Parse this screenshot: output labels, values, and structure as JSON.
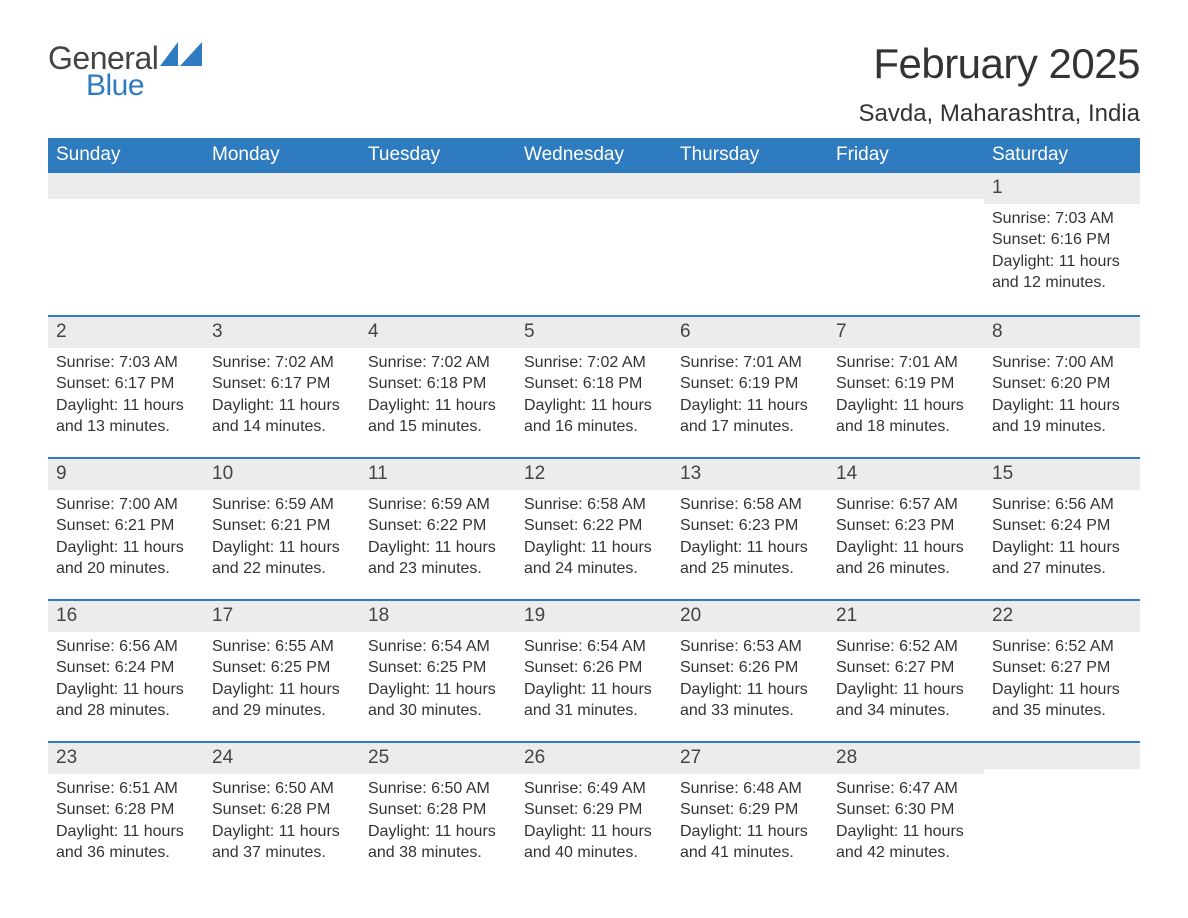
{
  "logo": {
    "text1": "General",
    "text2": "Blue",
    "shape_color": "#2f7bbf",
    "text1_color": "#444444",
    "text2_color": "#2f7bbf"
  },
  "title": "February 2025",
  "location": "Savda, Maharashtra, India",
  "colors": {
    "header_bg": "#2f7bbf",
    "header_text": "#ffffff",
    "daynum_bg": "#ececec",
    "row_border": "#2f7bbf",
    "body_text": "#333333",
    "background": "#ffffff"
  },
  "layout": {
    "columns": 7,
    "rows": 5,
    "title_fontsize": 42,
    "location_fontsize": 24,
    "weekday_fontsize": 19,
    "body_fontsize": 16
  },
  "weekdays": [
    "Sunday",
    "Monday",
    "Tuesday",
    "Wednesday",
    "Thursday",
    "Friday",
    "Saturday"
  ],
  "weeks": [
    [
      null,
      null,
      null,
      null,
      null,
      null,
      {
        "n": "1",
        "sr": "Sunrise: 7:03 AM",
        "ss": "Sunset: 6:16 PM",
        "d1": "Daylight: 11 hours",
        "d2": "and 12 minutes."
      }
    ],
    [
      {
        "n": "2",
        "sr": "Sunrise: 7:03 AM",
        "ss": "Sunset: 6:17 PM",
        "d1": "Daylight: 11 hours",
        "d2": "and 13 minutes."
      },
      {
        "n": "3",
        "sr": "Sunrise: 7:02 AM",
        "ss": "Sunset: 6:17 PM",
        "d1": "Daylight: 11 hours",
        "d2": "and 14 minutes."
      },
      {
        "n": "4",
        "sr": "Sunrise: 7:02 AM",
        "ss": "Sunset: 6:18 PM",
        "d1": "Daylight: 11 hours",
        "d2": "and 15 minutes."
      },
      {
        "n": "5",
        "sr": "Sunrise: 7:02 AM",
        "ss": "Sunset: 6:18 PM",
        "d1": "Daylight: 11 hours",
        "d2": "and 16 minutes."
      },
      {
        "n": "6",
        "sr": "Sunrise: 7:01 AM",
        "ss": "Sunset: 6:19 PM",
        "d1": "Daylight: 11 hours",
        "d2": "and 17 minutes."
      },
      {
        "n": "7",
        "sr": "Sunrise: 7:01 AM",
        "ss": "Sunset: 6:19 PM",
        "d1": "Daylight: 11 hours",
        "d2": "and 18 minutes."
      },
      {
        "n": "8",
        "sr": "Sunrise: 7:00 AM",
        "ss": "Sunset: 6:20 PM",
        "d1": "Daylight: 11 hours",
        "d2": "and 19 minutes."
      }
    ],
    [
      {
        "n": "9",
        "sr": "Sunrise: 7:00 AM",
        "ss": "Sunset: 6:21 PM",
        "d1": "Daylight: 11 hours",
        "d2": "and 20 minutes."
      },
      {
        "n": "10",
        "sr": "Sunrise: 6:59 AM",
        "ss": "Sunset: 6:21 PM",
        "d1": "Daylight: 11 hours",
        "d2": "and 22 minutes."
      },
      {
        "n": "11",
        "sr": "Sunrise: 6:59 AM",
        "ss": "Sunset: 6:22 PM",
        "d1": "Daylight: 11 hours",
        "d2": "and 23 minutes."
      },
      {
        "n": "12",
        "sr": "Sunrise: 6:58 AM",
        "ss": "Sunset: 6:22 PM",
        "d1": "Daylight: 11 hours",
        "d2": "and 24 minutes."
      },
      {
        "n": "13",
        "sr": "Sunrise: 6:58 AM",
        "ss": "Sunset: 6:23 PM",
        "d1": "Daylight: 11 hours",
        "d2": "and 25 minutes."
      },
      {
        "n": "14",
        "sr": "Sunrise: 6:57 AM",
        "ss": "Sunset: 6:23 PM",
        "d1": "Daylight: 11 hours",
        "d2": "and 26 minutes."
      },
      {
        "n": "15",
        "sr": "Sunrise: 6:56 AM",
        "ss": "Sunset: 6:24 PM",
        "d1": "Daylight: 11 hours",
        "d2": "and 27 minutes."
      }
    ],
    [
      {
        "n": "16",
        "sr": "Sunrise: 6:56 AM",
        "ss": "Sunset: 6:24 PM",
        "d1": "Daylight: 11 hours",
        "d2": "and 28 minutes."
      },
      {
        "n": "17",
        "sr": "Sunrise: 6:55 AM",
        "ss": "Sunset: 6:25 PM",
        "d1": "Daylight: 11 hours",
        "d2": "and 29 minutes."
      },
      {
        "n": "18",
        "sr": "Sunrise: 6:54 AM",
        "ss": "Sunset: 6:25 PM",
        "d1": "Daylight: 11 hours",
        "d2": "and 30 minutes."
      },
      {
        "n": "19",
        "sr": "Sunrise: 6:54 AM",
        "ss": "Sunset: 6:26 PM",
        "d1": "Daylight: 11 hours",
        "d2": "and 31 minutes."
      },
      {
        "n": "20",
        "sr": "Sunrise: 6:53 AM",
        "ss": "Sunset: 6:26 PM",
        "d1": "Daylight: 11 hours",
        "d2": "and 33 minutes."
      },
      {
        "n": "21",
        "sr": "Sunrise: 6:52 AM",
        "ss": "Sunset: 6:27 PM",
        "d1": "Daylight: 11 hours",
        "d2": "and 34 minutes."
      },
      {
        "n": "22",
        "sr": "Sunrise: 6:52 AM",
        "ss": "Sunset: 6:27 PM",
        "d1": "Daylight: 11 hours",
        "d2": "and 35 minutes."
      }
    ],
    [
      {
        "n": "23",
        "sr": "Sunrise: 6:51 AM",
        "ss": "Sunset: 6:28 PM",
        "d1": "Daylight: 11 hours",
        "d2": "and 36 minutes."
      },
      {
        "n": "24",
        "sr": "Sunrise: 6:50 AM",
        "ss": "Sunset: 6:28 PM",
        "d1": "Daylight: 11 hours",
        "d2": "and 37 minutes."
      },
      {
        "n": "25",
        "sr": "Sunrise: 6:50 AM",
        "ss": "Sunset: 6:28 PM",
        "d1": "Daylight: 11 hours",
        "d2": "and 38 minutes."
      },
      {
        "n": "26",
        "sr": "Sunrise: 6:49 AM",
        "ss": "Sunset: 6:29 PM",
        "d1": "Daylight: 11 hours",
        "d2": "and 40 minutes."
      },
      {
        "n": "27",
        "sr": "Sunrise: 6:48 AM",
        "ss": "Sunset: 6:29 PM",
        "d1": "Daylight: 11 hours",
        "d2": "and 41 minutes."
      },
      {
        "n": "28",
        "sr": "Sunrise: 6:47 AM",
        "ss": "Sunset: 6:30 PM",
        "d1": "Daylight: 11 hours",
        "d2": "and 42 minutes."
      },
      null
    ]
  ]
}
